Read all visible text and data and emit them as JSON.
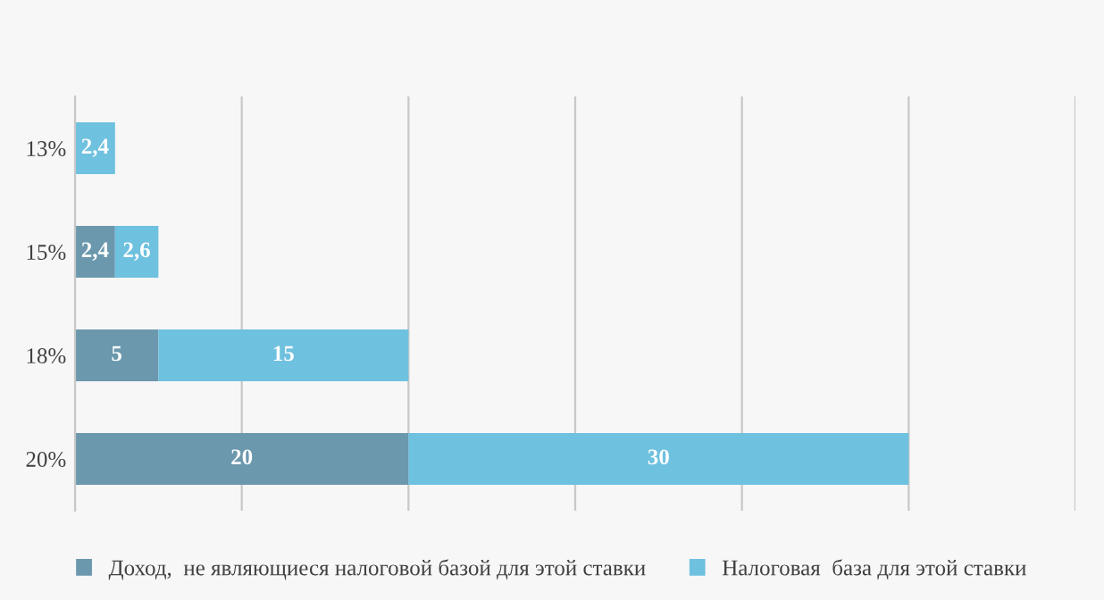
{
  "chart_data": {
    "type": "bar",
    "orientation": "horizontal",
    "stacked": true,
    "categories": [
      "13%",
      "15%",
      "18%",
      "20%"
    ],
    "series": [
      {
        "name": "Доход,  не являющиеся налоговой базой для этой ставки",
        "color": "#6b98ad",
        "values": [
          null,
          2.4,
          5,
          20
        ],
        "value_labels": [
          null,
          "2,4",
          "5",
          "20"
        ]
      },
      {
        "name": "Налоговая  база для этой ставки",
        "color": "#6ec1df",
        "values": [
          2.4,
          2.6,
          15,
          30
        ],
        "value_labels": [
          "2,4",
          "2,6",
          "15",
          "30"
        ]
      }
    ],
    "xlim": [
      0,
      60
    ],
    "xticks": [
      {
        "value": 0,
        "label": null
      },
      {
        "value": 10,
        "label": null
      },
      {
        "value": 20,
        "label": null
      },
      {
        "value": 30,
        "label": null
      },
      {
        "value": 40,
        "label": null
      },
      {
        "value": 50,
        "label": null
      },
      {
        "value": 60,
        "label": null
      }
    ],
    "tick_labels": "y",
    "grid": "x",
    "legend": "bottom"
  }
}
